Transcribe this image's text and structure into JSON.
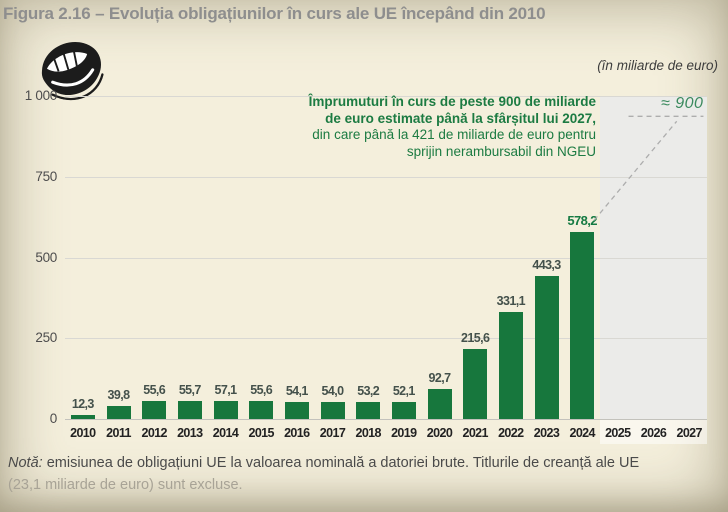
{
  "figure": {
    "title": "Figura 2.16 – Evoluția obligațiunilor în curs ale UE începând din 2010",
    "unit_label": "(în miliarde de euro)",
    "icon": "mouth-icon"
  },
  "annotation": {
    "lines": [
      {
        "text": "Împrumuturi în curs de peste 900 de miliarde",
        "bold": true
      },
      {
        "text": "de euro estimate până la sfârșitul lui 2027,",
        "bold": true
      },
      {
        "text": "din care până la 421 de miliarde de euro pentru",
        "bold": false
      },
      {
        "text": "sprijin nerambursabil din NGEU",
        "bold": false
      }
    ],
    "approx_label": "≈ 900"
  },
  "note": {
    "prefix": "Notă:",
    "line1": " emisiunea de obligațiuni UE la valoarea nominală a datoriei brute. Titlurile de creanță ale UE",
    "line2": "(23,1 miliarde de euro) sunt excluse."
  },
  "chart_data": {
    "type": "bar",
    "title": "Evoluția obligațiunilor în curs ale UE începând din 2010",
    "unit": "miliarde de euro",
    "categories": [
      "2010",
      "2011",
      "2012",
      "2013",
      "2014",
      "2015",
      "2016",
      "2017",
      "2018",
      "2019",
      "2020",
      "2021",
      "2022",
      "2023",
      "2024",
      "2025",
      "2026",
      "2027"
    ],
    "values": [
      12.3,
      39.8,
      55.6,
      55.7,
      57.1,
      55.6,
      54.1,
      54.0,
      53.2,
      52.1,
      92.7,
      215.6,
      331.1,
      443.3,
      578.2,
      null,
      null,
      null
    ],
    "value_labels": [
      "12,3",
      "39,8",
      "55,6",
      "55,7",
      "57,1",
      "55,6",
      "54,1",
      "54,0",
      "53,2",
      "52,1",
      "92,7",
      "215,6",
      "331,1",
      "443,3",
      "578,2"
    ],
    "highlight_label_index": 14,
    "ytick_values": [
      0,
      250,
      500,
      750,
      1000
    ],
    "ytick_labels": [
      "0",
      "250",
      "500",
      "750",
      "1 000"
    ],
    "ylim": [
      0,
      1000
    ],
    "grid": true,
    "forecast_years": [
      "2025",
      "2026",
      "2027"
    ],
    "forecast_value": 900,
    "forecast_label": "≈ 900",
    "bar_color": "#17773d",
    "accent_green": "#1c7b42",
    "forecast_shade_color": "#ebebe9",
    "dashed_line_color": "#adadad"
  }
}
